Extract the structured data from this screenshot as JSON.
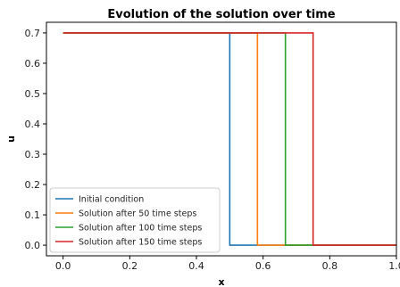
{
  "chart_data": {
    "type": "line",
    "title": "Evolution of the solution over time",
    "xlabel": "x",
    "ylabel": "u",
    "xlim": [
      -0.05,
      1.0
    ],
    "ylim": [
      -0.035,
      0.735
    ],
    "xticks": [
      "0.0",
      "0.2",
      "0.4",
      "0.6",
      "0.8",
      "1.0"
    ],
    "yticks": [
      "0.0",
      "0.1",
      "0.2",
      "0.3",
      "0.4",
      "0.5",
      "0.6",
      "0.7"
    ],
    "grid": false,
    "legend_position": "lower-left",
    "series": [
      {
        "name": "Initial condition",
        "color": "#1f77b4",
        "x": [
          0.0,
          0.5,
          0.5,
          1.0
        ],
        "y": [
          0.7,
          0.7,
          0.0,
          0.0
        ]
      },
      {
        "name": "Solution after 50 time steps",
        "color": "#ff7f0e",
        "x": [
          0.0,
          0.583,
          0.583,
          1.0
        ],
        "y": [
          0.7,
          0.7,
          0.0,
          0.0
        ]
      },
      {
        "name": "Solution after 100 time steps",
        "color": "#2ca02c",
        "x": [
          0.0,
          0.667,
          0.667,
          1.0
        ],
        "y": [
          0.7,
          0.7,
          0.0,
          0.0
        ]
      },
      {
        "name": "Solution after 150 time steps",
        "color": "#d62728",
        "x": [
          0.0,
          0.75,
          0.75,
          1.0
        ],
        "y": [
          0.7,
          0.7,
          0.0,
          0.0
        ]
      }
    ]
  }
}
